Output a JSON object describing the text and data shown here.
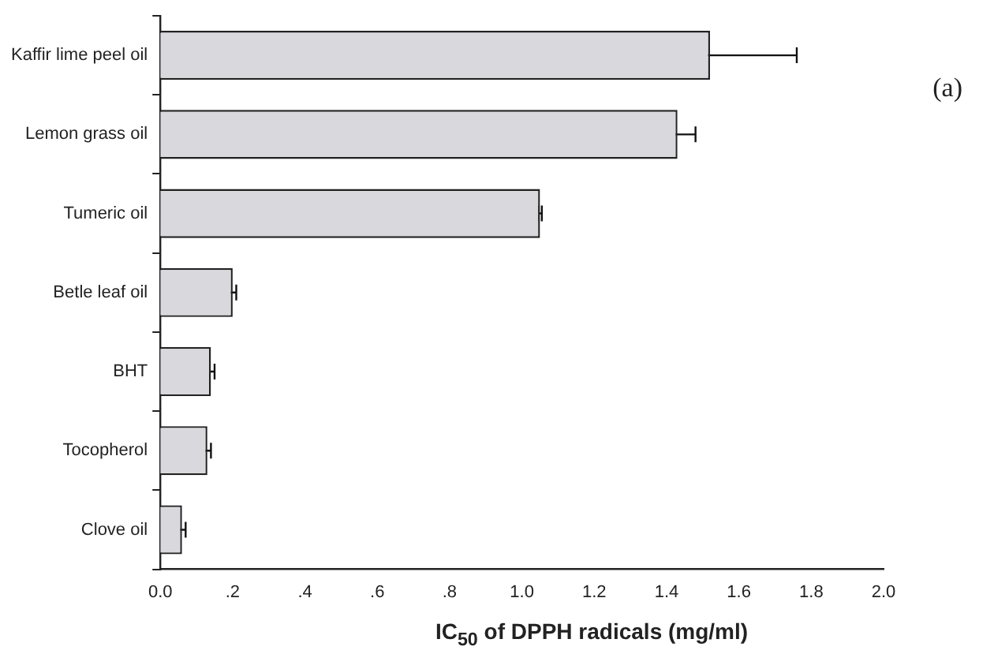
{
  "chart_data": {
    "type": "bar",
    "orientation": "horizontal",
    "xlabel": "IC$_{50}$ of DPPH radicals (mg/ml)",
    "annotations": [
      "(a)"
    ],
    "categories": [
      "Kaffir lime peel oil",
      "Lemon grass oil",
      "Tumeric oil",
      "Betle leaf oil",
      "BHT",
      "Tocopherol",
      "Clove oil"
    ],
    "values": [
      1.52,
      1.43,
      1.05,
      0.2,
      0.14,
      0.13,
      0.06
    ],
    "errors": [
      0.24,
      0.05,
      0.005,
      0.01,
      0.01,
      0.01,
      0.01
    ],
    "color": "#d9d9dd",
    "xlim": [
      0,
      2
    ],
    "xticks": [
      {
        "value": 0,
        "label": "0.0"
      },
      {
        "value": 0.2,
        "label": ".2"
      },
      {
        "value": 0.4,
        "label": ".4"
      },
      {
        "value": 0.6,
        "label": ".6"
      },
      {
        "value": 0.8,
        "label": ".8"
      },
      {
        "value": 1,
        "label": "1.0"
      },
      {
        "value": 1.2,
        "label": "1.2"
      },
      {
        "value": 1.4,
        "label": "1.4"
      },
      {
        "value": 1.6,
        "label": "1.6"
      },
      {
        "value": 1.8,
        "label": "1.8"
      },
      {
        "value": 2,
        "label": "2.0"
      }
    ],
    "grid": false,
    "legend": false
  }
}
